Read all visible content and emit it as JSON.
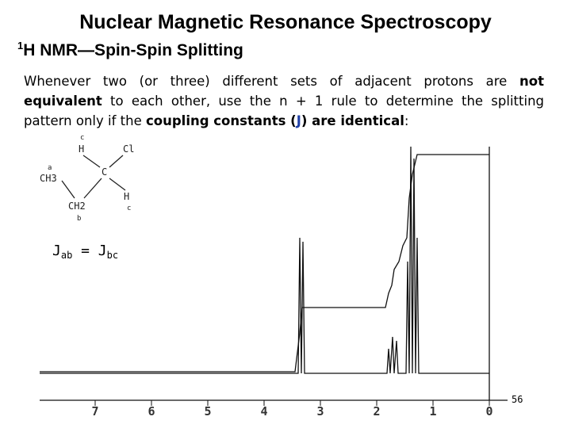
{
  "header": {
    "title": "Nuclear Magnetic Resonance Spectroscopy",
    "subtitle_sup": "1",
    "subtitle": "H NMR—Spin-Spin Splitting"
  },
  "paragraph": {
    "parts": [
      {
        "text": "Whenever two (or three) different sets of adjacent protons are ",
        "style": "normal"
      },
      {
        "text": "not equivalent",
        "style": "bold"
      },
      {
        "text": " to each other, use the n + 1 rule to determine the splitting pattern only if the ",
        "style": "normal"
      },
      {
        "text": "coupling constants (",
        "style": "bold"
      },
      {
        "text": "J",
        "style": "bold-blue"
      },
      {
        "text": ") are identical",
        "style": "bold"
      },
      {
        "text": ":",
        "style": "normal"
      }
    ]
  },
  "structure": {
    "labels": [
      "c",
      "H",
      "Cl",
      "a",
      "CH3",
      "C",
      "H",
      "c",
      "CH2",
      "b"
    ]
  },
  "equation": {
    "parts": [
      "J",
      "ab",
      " = J",
      "bc"
    ]
  },
  "spectrum": {
    "ticks": [
      7,
      6,
      5,
      4,
      3,
      2,
      1,
      0
    ]
  },
  "footer": {
    "page": "56"
  }
}
